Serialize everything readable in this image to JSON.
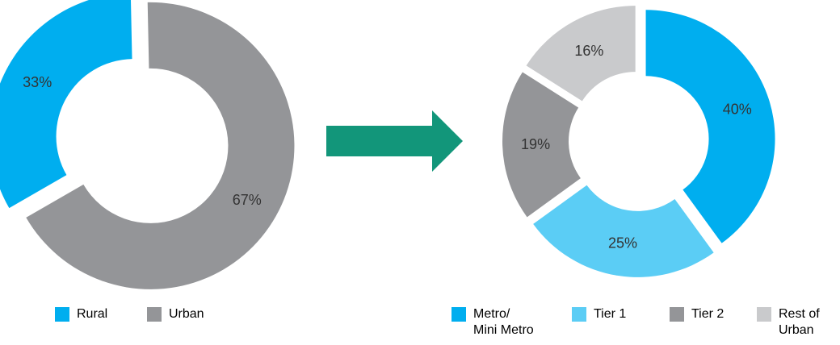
{
  "chart_data": [
    {
      "type": "pie",
      "variant": "exploded-donut",
      "categories": [
        "Rural",
        "Urban"
      ],
      "values": [
        33,
        67
      ],
      "labels": [
        "33%",
        "67%"
      ],
      "colors": [
        "#00aeef",
        "#949598"
      ],
      "legend": [
        "Rural",
        "Urban"
      ],
      "legend_position": "bottom"
    },
    {
      "type": "pie",
      "variant": "exploded-donut",
      "categories": [
        "Metro/\nMini Metro",
        "Tier 1",
        "Tier 2",
        "Rest of\nUrban"
      ],
      "values": [
        40,
        25,
        19,
        16
      ],
      "labels": [
        "40%",
        "25%",
        "19%",
        "16%"
      ],
      "colors": [
        "#00aeef",
        "#5bcdf5",
        "#949598",
        "#c9cacc"
      ],
      "legend": [
        "Metro/\nMini Metro",
        "Tier 1",
        "Tier 2",
        "Rest of\nUrban"
      ],
      "legend_position": "bottom"
    }
  ],
  "arrow_icon": "right-arrow-icon",
  "arrow_color": "#12967a"
}
